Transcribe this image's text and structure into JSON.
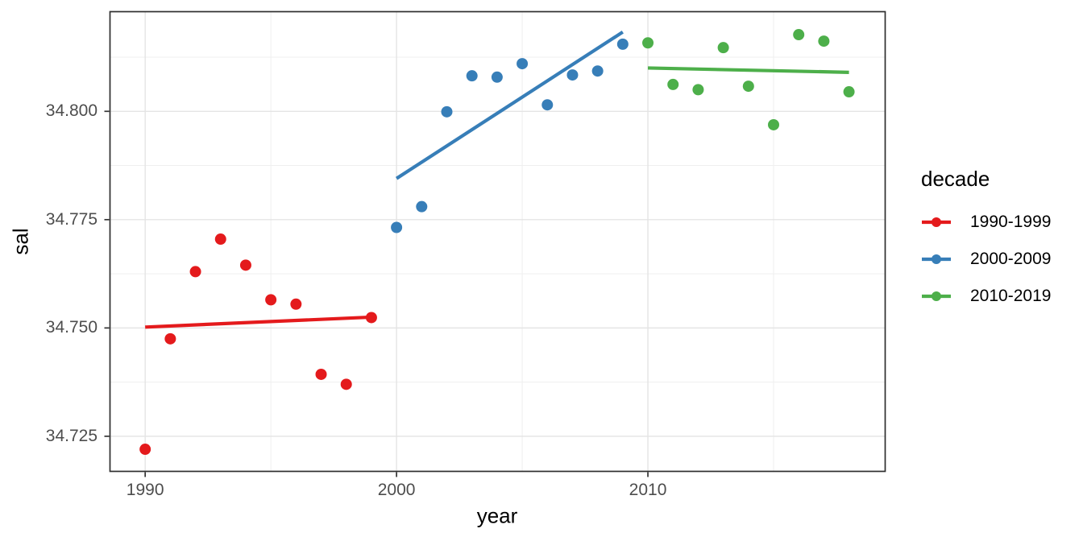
{
  "chart_data": {
    "type": "scatter",
    "title": "",
    "xlabel": "year",
    "ylabel": "sal",
    "legend_title": "decade",
    "legend_position": "right",
    "grid": true,
    "x_range": [
      1988.6,
      2019.44
    ],
    "y_range": [
      34.7169,
      34.823
    ],
    "x_ticks": {
      "major": [
        1990,
        2000,
        2010
      ],
      "minor": [
        1995,
        2005,
        2015
      ],
      "labels": [
        "1990",
        "2000",
        "2010"
      ]
    },
    "y_ticks": {
      "major": [
        34.725,
        34.75,
        34.775,
        34.8
      ],
      "minor": [
        34.7375,
        34.7625,
        34.7875,
        34.8125
      ],
      "labels": [
        "34.725",
        "34.750",
        "34.775",
        "34.800"
      ]
    },
    "series": [
      {
        "name": "1990-1999",
        "color": "#e41a1c",
        "x": [
          1990,
          1991,
          1992,
          1993,
          1994,
          1995,
          1996,
          1997,
          1998,
          1999
        ],
        "y": [
          34.722,
          34.7475,
          34.763,
          34.7705,
          34.7645,
          34.7565,
          34.7555,
          34.7393,
          34.737,
          34.7524
        ],
        "trend": {
          "x1": 1990,
          "y1": 34.7502,
          "x2": 1999,
          "y2": 34.7525
        }
      },
      {
        "name": "2000-2009",
        "color": "#377eb8",
        "x": [
          2000,
          2001,
          2002,
          2003,
          2004,
          2005,
          2006,
          2007,
          2008,
          2009
        ],
        "y": [
          34.7732,
          34.778,
          34.7999,
          34.8082,
          34.8079,
          34.811,
          34.8015,
          34.8084,
          34.8093,
          34.8155
        ],
        "trend": {
          "x1": 2000,
          "y1": 34.7845,
          "x2": 2009,
          "y2": 34.8183
        }
      },
      {
        "name": "2010-2019",
        "color": "#4daf4a",
        "x": [
          2010,
          2011,
          2012,
          2013,
          2014,
          2015,
          2016,
          2017,
          2018
        ],
        "y": [
          34.8158,
          34.8062,
          34.805,
          34.8147,
          34.8058,
          34.7969,
          34.8177,
          34.8162,
          34.8045
        ],
        "trend": {
          "x1": 2010,
          "y1": 34.81,
          "x2": 2018,
          "y2": 34.809
        }
      }
    ]
  },
  "theme": {
    "background": "#ffffff",
    "panel_background": "#ffffff",
    "panel_border": "#2e2e2e",
    "grid_major": "#e4e4e4",
    "grid_minor": "#efefef",
    "tick_color": "#333333",
    "tick_label_color": "#4d4d4d",
    "title_color": "#000000"
  }
}
